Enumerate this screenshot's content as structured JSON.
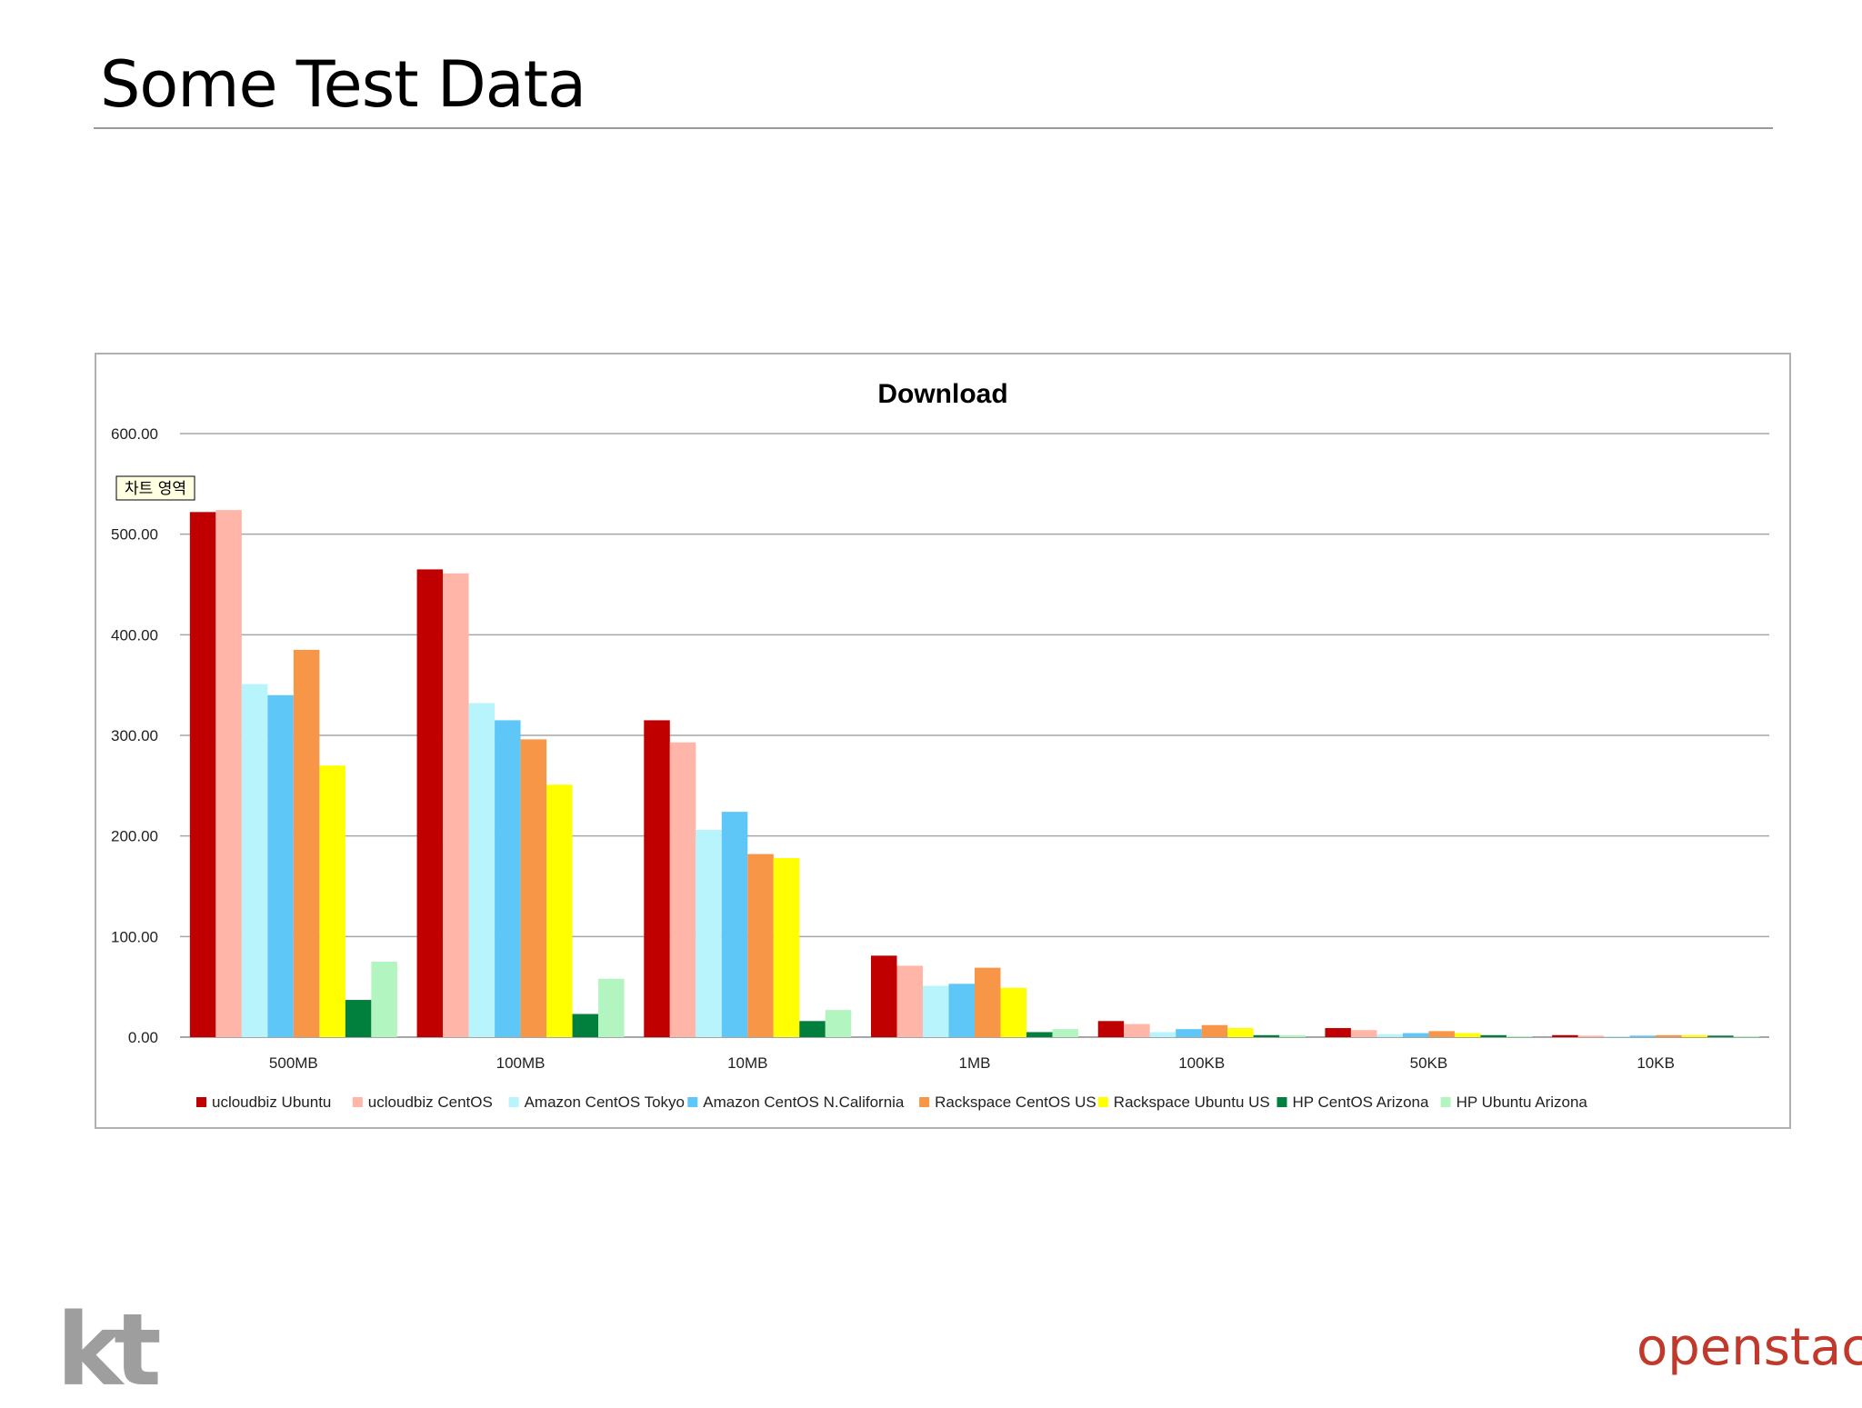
{
  "slide": {
    "title": "Some Test Data",
    "logo_left": "kt",
    "logo_right": "openstack",
    "logo_right_tm": "™"
  },
  "chart_data": {
    "type": "bar",
    "title": "Download",
    "xlabel": "",
    "ylabel": "",
    "ylim": [
      0,
      600
    ],
    "yticks": [
      "0.00",
      "100.00",
      "200.00",
      "300.00",
      "400.00",
      "500.00",
      "600.00"
    ],
    "grid": true,
    "legend_position": "bottom",
    "tooltip": "차트 영역",
    "categories": [
      "500MB",
      "100MB",
      "10MB",
      "1MB",
      "100KB",
      "50KB",
      "10KB"
    ],
    "series": [
      {
        "name": "ucloudbiz Ubuntu",
        "color": "#c00000",
        "values": [
          522,
          465,
          315,
          81,
          16,
          9,
          2
        ]
      },
      {
        "name": "ucloudbiz CentOS",
        "color": "#ffb6a8",
        "values": [
          524,
          461,
          293,
          71,
          13,
          7,
          1.5
        ]
      },
      {
        "name": "Amazon CentOS Tokyo",
        "color": "#b8f4fc",
        "values": [
          351,
          332,
          206,
          51,
          5,
          3,
          1
        ]
      },
      {
        "name": "Amazon CentOS N.California",
        "color": "#5ec7f8",
        "values": [
          340,
          315,
          224,
          53,
          8,
          4,
          1.5
        ]
      },
      {
        "name": "Rackspace CentOS US",
        "color": "#f79646",
        "values": [
          385,
          296,
          182,
          69,
          12,
          6,
          2
        ]
      },
      {
        "name": "Rackspace Ubuntu US",
        "color": "#ffff00",
        "values": [
          270,
          251,
          178,
          49,
          9,
          4,
          2
        ]
      },
      {
        "name": "HP CentOS Arizona",
        "color": "#00803c",
        "values": [
          37,
          23,
          16,
          5,
          2,
          2,
          1.5
        ]
      },
      {
        "name": "HP Ubuntu Arizona",
        "color": "#b3f5c0",
        "values": [
          75,
          58,
          27,
          8,
          2,
          1,
          1
        ]
      }
    ]
  }
}
